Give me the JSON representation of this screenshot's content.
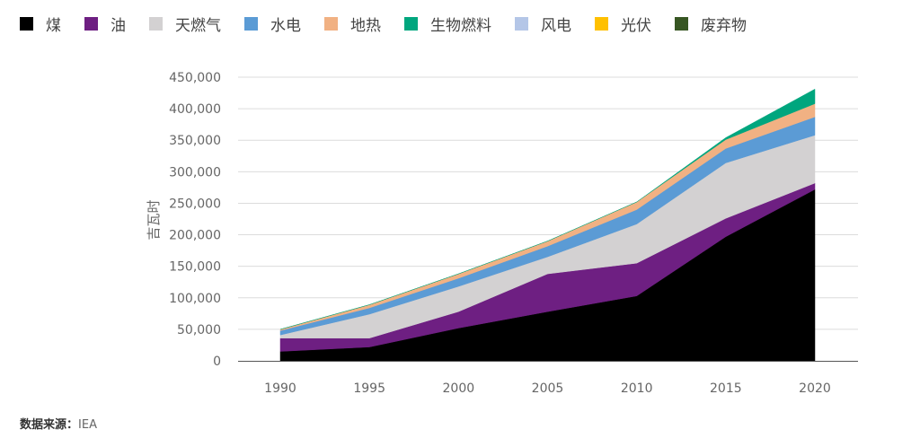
{
  "chart_data": {
    "type": "area",
    "stacked": true,
    "x": [
      1990,
      1995,
      2000,
      2005,
      2010,
      2015,
      2020
    ],
    "ylabel": "吉瓦时",
    "ylim": [
      0,
      450000
    ],
    "yticks": [
      0,
      50000,
      100000,
      150000,
      200000,
      250000,
      300000,
      350000,
      400000,
      450000
    ],
    "ytick_labels": [
      "0",
      "50,000",
      "100,000",
      "150,000",
      "200,000",
      "250,000",
      "300,000",
      "350,000",
      "400,000",
      "450,000"
    ],
    "grid": true,
    "legend_position": "top",
    "series": [
      {
        "name": "煤",
        "color": "#000000",
        "values": [
          15000,
          22000,
          52000,
          78000,
          103000,
          197000,
          272000
        ]
      },
      {
        "name": "油",
        "color": "#6e1f82",
        "values": [
          21000,
          14000,
          26000,
          60000,
          52000,
          29000,
          10000
        ]
      },
      {
        "name": "天燃气",
        "color": "#d3d1d2",
        "values": [
          5000,
          38000,
          40000,
          27000,
          62000,
          88000,
          76000
        ]
      },
      {
        "name": "水电",
        "color": "#5b9bd5",
        "values": [
          7000,
          10000,
          13000,
          17000,
          23000,
          23000,
          29000
        ]
      },
      {
        "name": "地热",
        "color": "#f1b183",
        "values": [
          2000,
          5000,
          7000,
          8000,
          12000,
          14000,
          21000
        ]
      },
      {
        "name": "生物燃料",
        "color": "#00a67e",
        "values": [
          0,
          0,
          0,
          0,
          0,
          3000,
          23000
        ]
      },
      {
        "name": "风电",
        "color": "#b4c6e7",
        "values": [
          0,
          0,
          0,
          0,
          0,
          0,
          0
        ]
      },
      {
        "name": "光伏",
        "color": "#ffc000",
        "values": [
          0,
          0,
          0,
          0,
          0,
          0,
          0
        ]
      },
      {
        "name": "废弃物",
        "color": "#375623",
        "values": [
          0,
          0,
          0,
          0,
          0,
          0,
          0
        ]
      }
    ]
  },
  "source": {
    "label": "数据来源：",
    "value": "IEA"
  }
}
